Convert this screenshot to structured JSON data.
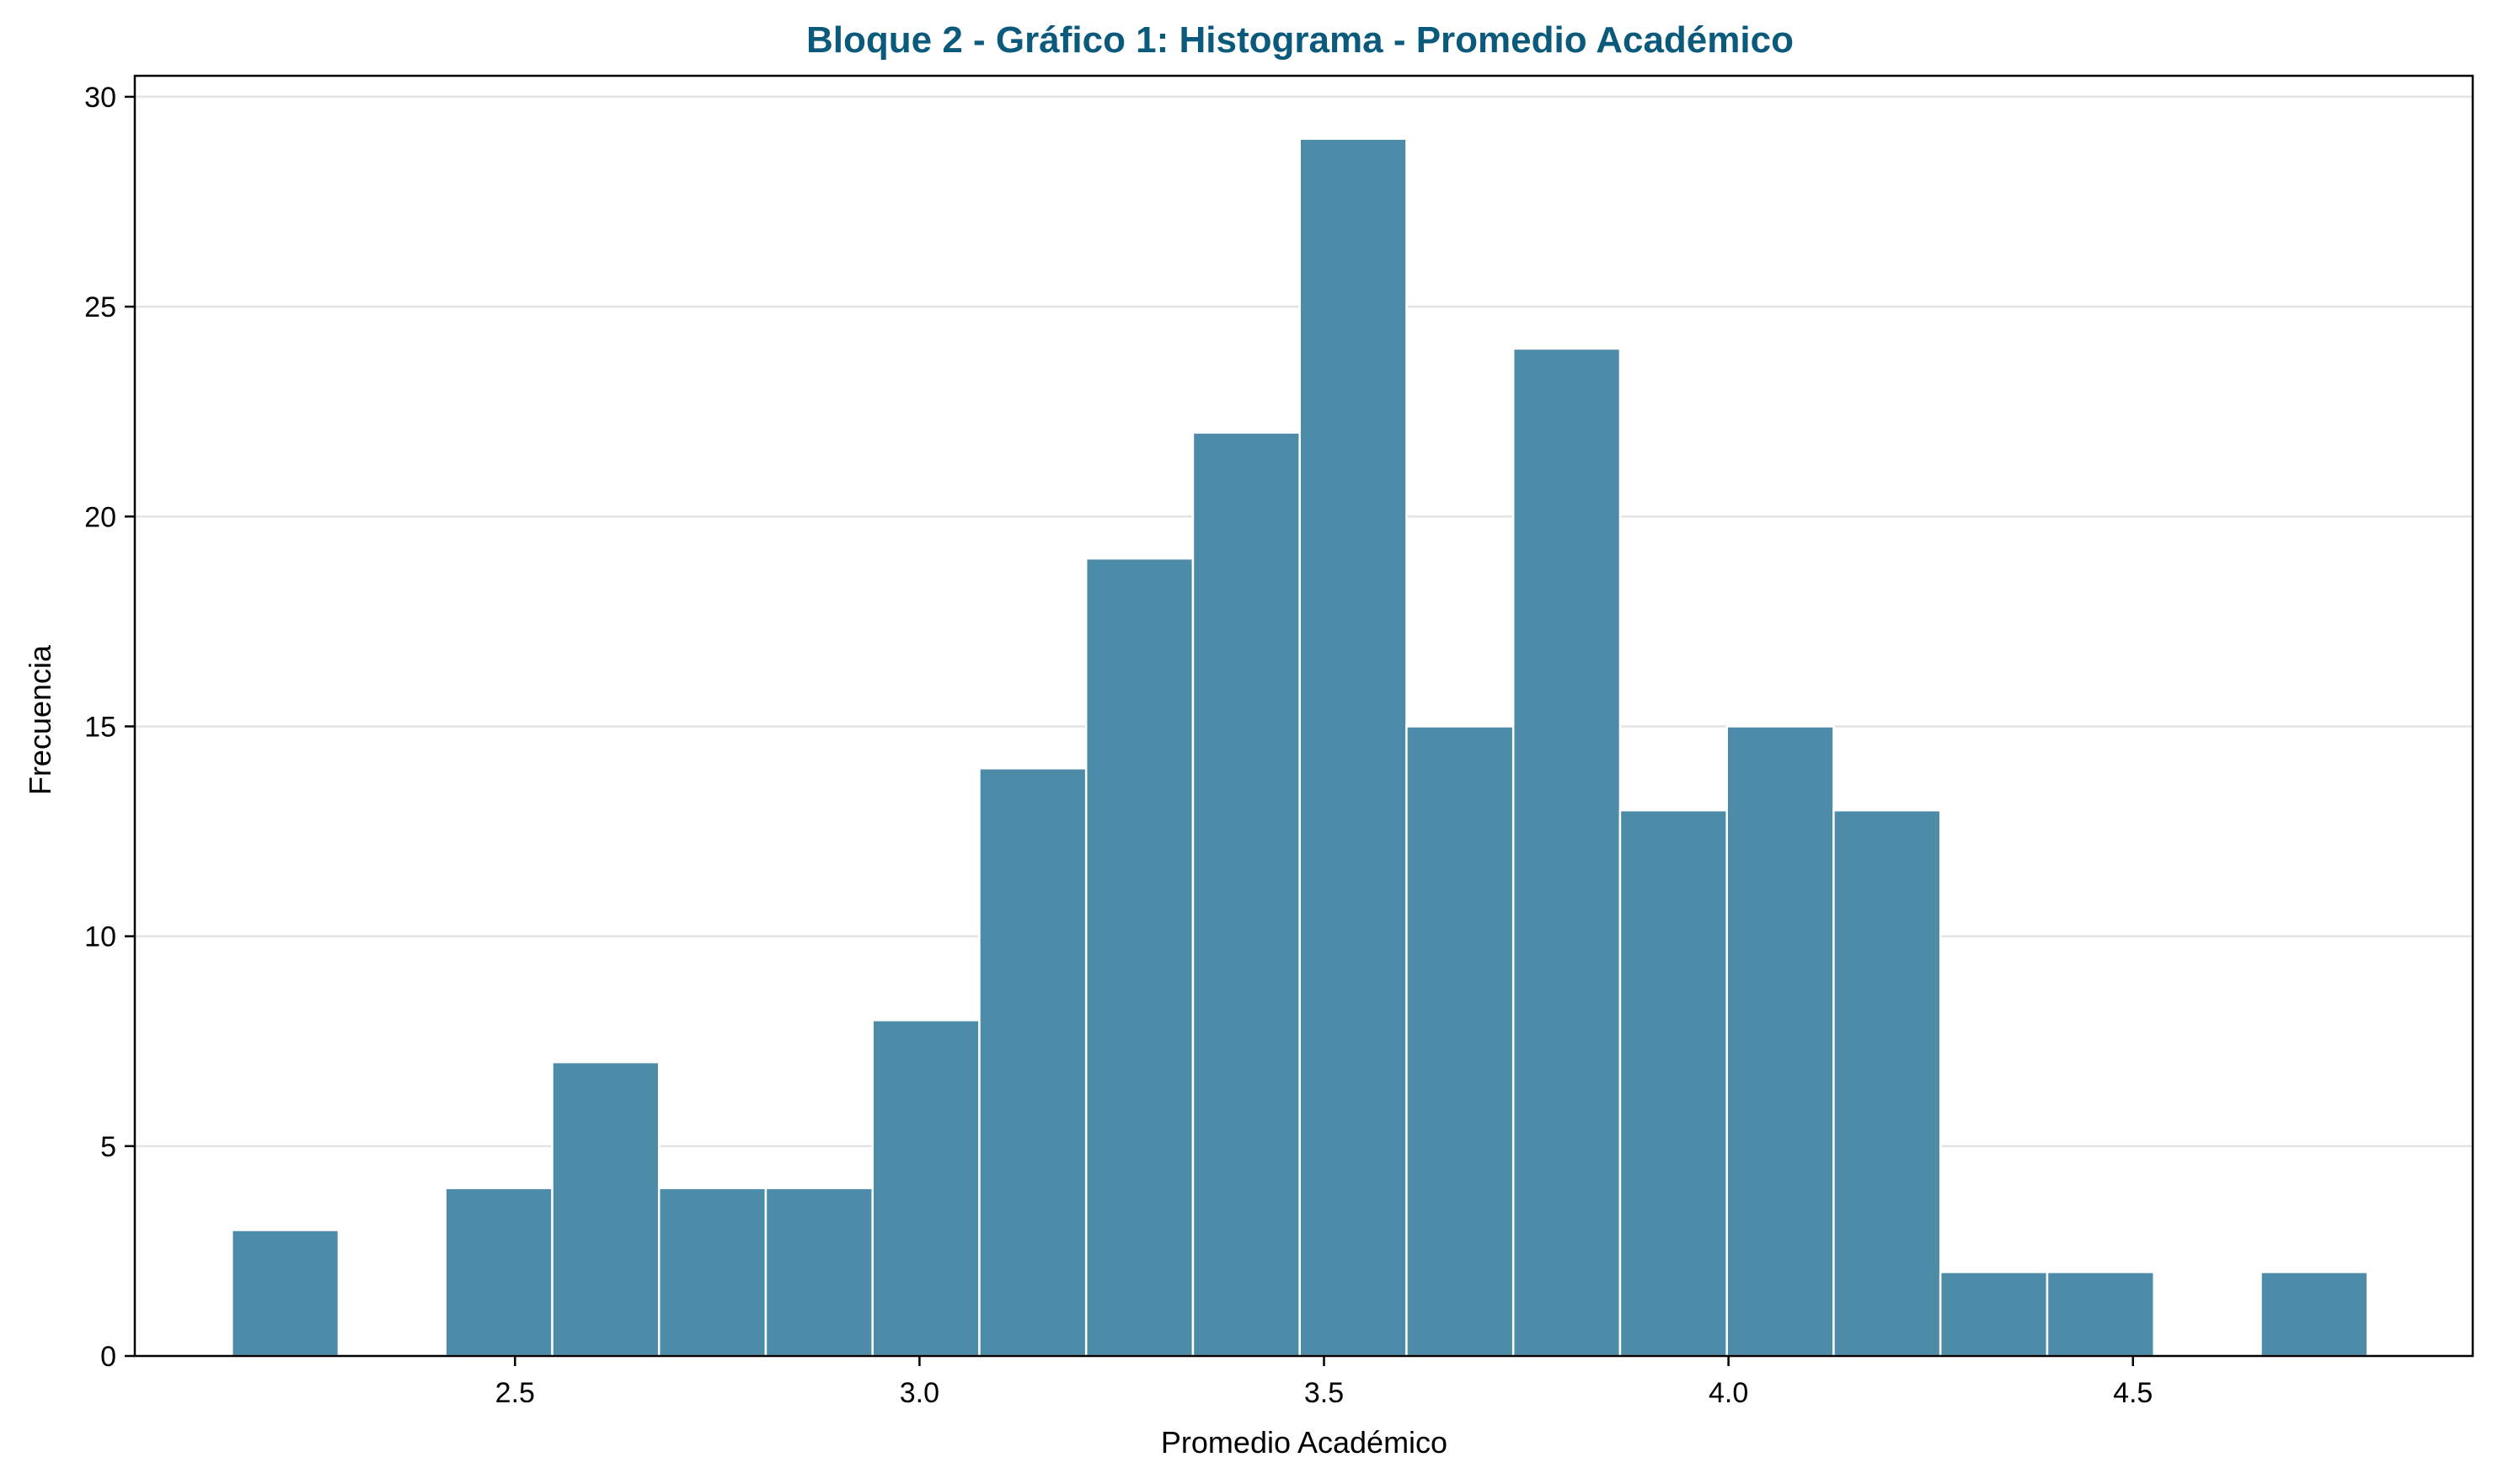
{
  "chart_data": {
    "type": "bar",
    "title": "Bloque 2 - Gráfico 1: Histograma - Promedio Académico",
    "xlabel": "Promedio Académico",
    "ylabel": "Frecuencia",
    "xlim": [
      2.03,
      4.92
    ],
    "ylim": [
      0,
      30.5
    ],
    "xticks": [
      "2.5",
      "3.0",
      "3.5",
      "4.0",
      "4.5"
    ],
    "yticks": [
      "0",
      "5",
      "10",
      "15",
      "20",
      "25",
      "30"
    ],
    "grid": "horizontal",
    "bins": [
      {
        "x0": 2.15,
        "x1": 2.282,
        "value": 3
      },
      {
        "x0": 2.282,
        "x1": 2.414,
        "value": 0
      },
      {
        "x0": 2.414,
        "x1": 2.546,
        "value": 4
      },
      {
        "x0": 2.546,
        "x1": 2.678,
        "value": 7
      },
      {
        "x0": 2.678,
        "x1": 2.81,
        "value": 4
      },
      {
        "x0": 2.81,
        "x1": 2.942,
        "value": 4
      },
      {
        "x0": 2.942,
        "x1": 3.074,
        "value": 8
      },
      {
        "x0": 3.074,
        "x1": 3.206,
        "value": 14
      },
      {
        "x0": 3.206,
        "x1": 3.338,
        "value": 19
      },
      {
        "x0": 3.338,
        "x1": 3.47,
        "value": 22
      },
      {
        "x0": 3.47,
        "x1": 3.602,
        "value": 29
      },
      {
        "x0": 3.602,
        "x1": 3.734,
        "value": 15
      },
      {
        "x0": 3.734,
        "x1": 3.866,
        "value": 24
      },
      {
        "x0": 3.866,
        "x1": 3.998,
        "value": 13
      },
      {
        "x0": 3.998,
        "x1": 4.13,
        "value": 15
      },
      {
        "x0": 4.13,
        "x1": 4.262,
        "value": 13
      },
      {
        "x0": 4.262,
        "x1": 4.394,
        "value": 2
      },
      {
        "x0": 4.394,
        "x1": 4.526,
        "value": 2
      },
      {
        "x0": 4.526,
        "x1": 4.658,
        "value": 0
      },
      {
        "x0": 4.658,
        "x1": 4.79,
        "value": 2
      }
    ],
    "colors": {
      "bar": "#4d8ca8",
      "bar_edge": "#ffffff",
      "title": "#0b5a7c",
      "grid": "#e3e3e3"
    }
  }
}
